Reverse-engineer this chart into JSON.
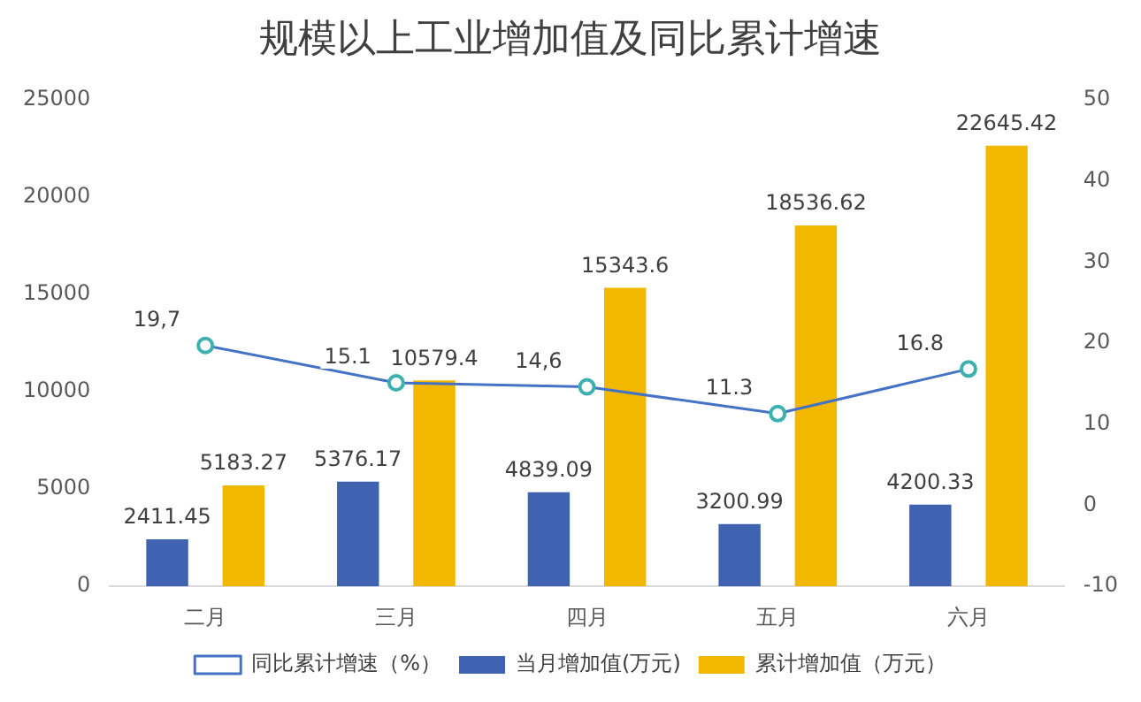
{
  "chart_data": {
    "type": "bar",
    "title": "规模以上工业增加值及同比累计增速",
    "categories": [
      "二月",
      "三月",
      "四月",
      "五月",
      "六月"
    ],
    "series": [
      {
        "name": "当月增加值(万元)",
        "color": "#3f63b0",
        "values": [
          2411.45,
          5376.17,
          4839.09,
          3200.99,
          4200.33
        ],
        "value_labels": [
          "2411.45",
          "5376.17",
          "4839.09",
          "3200.99",
          "4200.33"
        ]
      },
      {
        "name": "累计增加值（万元）",
        "color": "#f2b800",
        "values": [
          5183.27,
          10579.4,
          15343.6,
          18536.62,
          22645.42
        ],
        "value_labels": [
          "5183.27",
          "10579.4",
          "15343.6",
          "18536.62",
          "22645.42"
        ]
      },
      {
        "name": "同比累计增速（%）",
        "type": "line",
        "axis": "y2",
        "color": "#4472c4",
        "marker": "circle",
        "values": [
          19.7,
          15.1,
          14.6,
          11.3,
          16.8
        ],
        "value_labels": [
          "19,7",
          "15.1",
          "14,6",
          "11.3",
          "16.8"
        ]
      }
    ],
    "ylim": [
      0,
      25000
    ],
    "yticks": [
      0,
      5000,
      10000,
      15000,
      20000,
      25000
    ],
    "y2lim": [
      -10,
      50
    ],
    "y2ticks": [
      -10,
      0,
      10,
      20,
      30,
      40,
      50
    ],
    "grid": false,
    "legend": "bottom"
  }
}
